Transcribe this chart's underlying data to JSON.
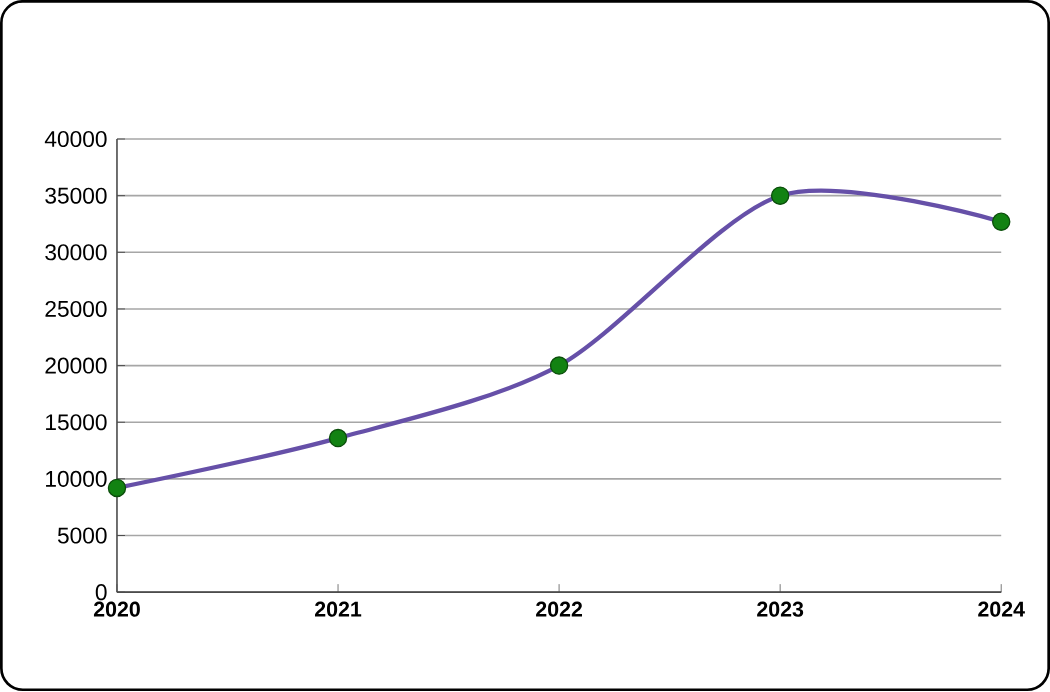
{
  "chart_data": {
    "type": "line",
    "categories": [
      "2020",
      "2021",
      "2022",
      "2023",
      "2024"
    ],
    "series": [
      {
        "color": "#6650a8",
        "values": [
          9200,
          13600,
          20000,
          35000,
          32700
        ]
      }
    ],
    "ylim": [
      0,
      40000
    ],
    "yticks": [
      0,
      5000,
      10000,
      15000,
      20000,
      25000,
      30000,
      35000,
      40000
    ],
    "grid": "y",
    "marker": "circle"
  }
}
